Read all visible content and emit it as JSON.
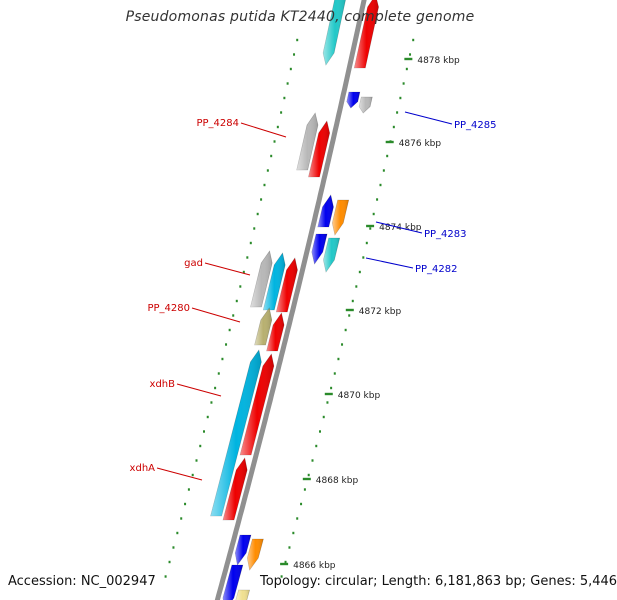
{
  "title": "Pseudomonas putida KT2440, complete genome",
  "accession": "Accession: NC_002947",
  "summary": "Topology: circular; Length: 6,181,863 bp; Genes: 5,446",
  "colors": {
    "red": "#ee0000",
    "blue": "#0000ee",
    "cyan": "#00b4e0",
    "teal": "#22c8c8",
    "grey": "#b8b8b8",
    "orange": "#ff8c00",
    "olive": "#b8b070",
    "yellow": "#f0e090",
    "backbone": "#909090",
    "tick": "#2a8a2a",
    "left_label": "#cc0000",
    "right_label": "#0000cc"
  },
  "scale_labels": [
    "4878 kbp",
    "4876 kbp",
    "4874 kbp",
    "4872 kbp",
    "4870 kbp",
    "4868 kbp",
    "4866 kbp"
  ],
  "gene_labels_left": [
    "PP_4284",
    "gad",
    "PP_4280",
    "xdhB",
    "xdhA"
  ],
  "gene_labels_right": [
    "PP_4285",
    "PP_4283",
    "PP_4282"
  ]
}
